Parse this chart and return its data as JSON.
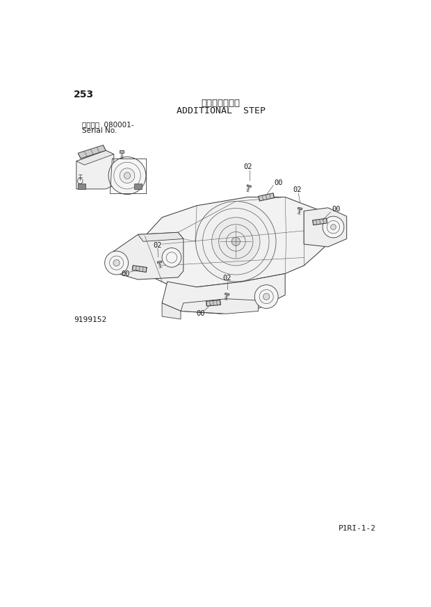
{
  "title_japanese": "追加ステップ゚",
  "title_english": "ADDITIONAL  STEP",
  "page_number": "253",
  "serial_label1": "適用号機  080001-",
  "serial_label2": "Serial No.",
  "part_number": "9199152",
  "page_id": "P1RI-1-2",
  "bg_color": "#ffffff",
  "line_color": "#4a4a4a",
  "text_color": "#1a1a1a",
  "lw_main": 0.7,
  "lw_thin": 0.45,
  "lw_leader": 0.5
}
